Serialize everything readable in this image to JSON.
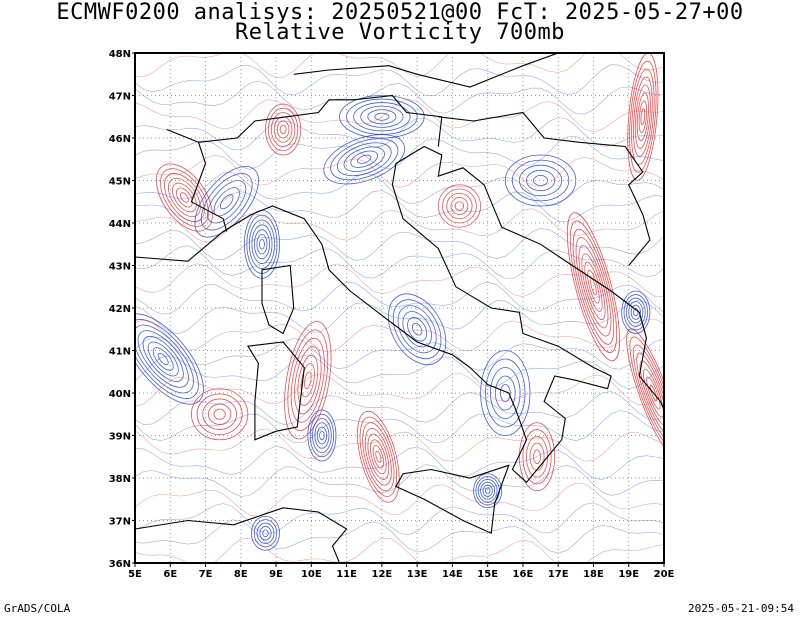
{
  "title_line1": "ECMWF0200 analisys: 20250521@00 FcT: 2025-05-27+00",
  "title_line2": "Relative Vorticity 700mb",
  "footer_left": "GrADS/COLA",
  "footer_right": "2025-05-21-09:54",
  "map": {
    "lon_range": [
      5,
      20
    ],
    "lat_range": [
      36,
      48
    ],
    "lon_labels": [
      "5E",
      "6E",
      "7E",
      "8E",
      "9E",
      "10E",
      "11E",
      "12E",
      "13E",
      "14E",
      "15E",
      "16E",
      "17E",
      "18E",
      "19E",
      "20E"
    ],
    "lat_labels": [
      "36N",
      "37N",
      "38N",
      "39N",
      "40N",
      "41N",
      "42N",
      "43N",
      "44N",
      "45N",
      "46N",
      "47N",
      "48N"
    ],
    "grid": true,
    "colors": {
      "positive": "#e83030",
      "negative": "#2040e0",
      "coast": "#000000",
      "grid": "#999999"
    }
  }
}
